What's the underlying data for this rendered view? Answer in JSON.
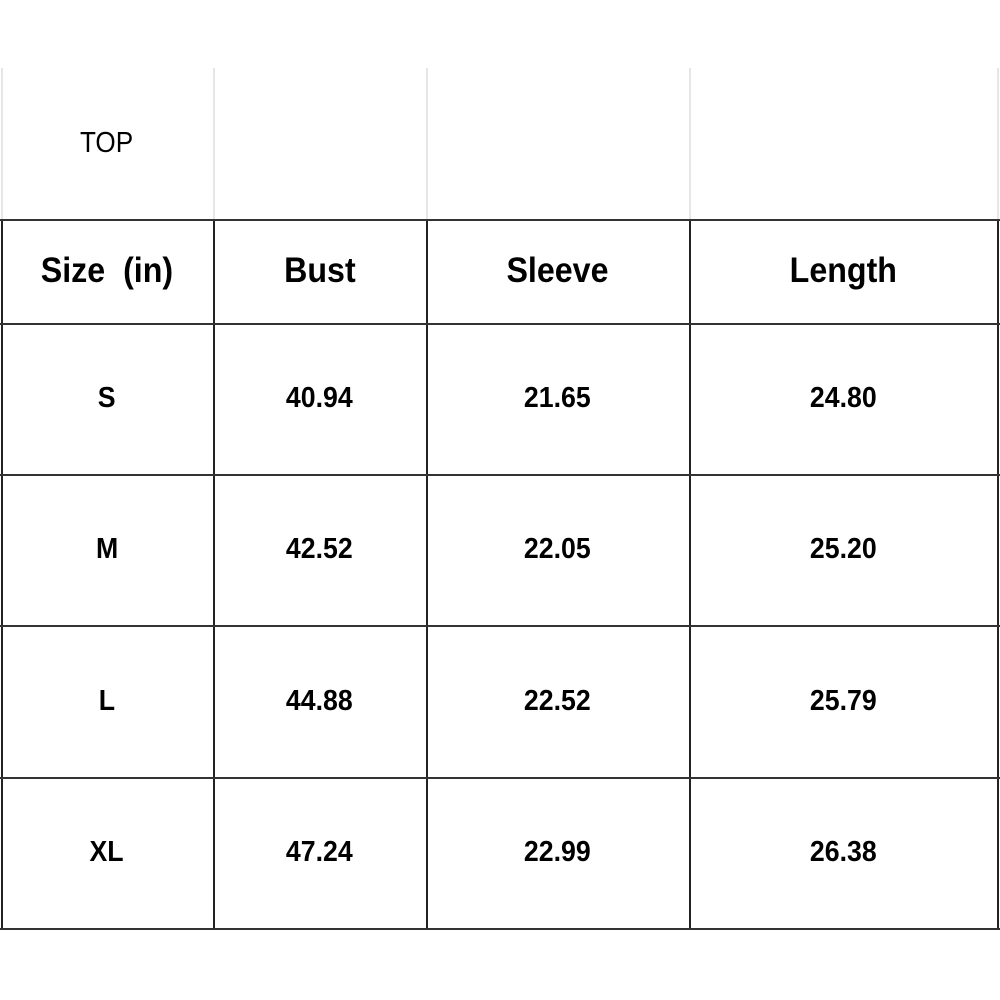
{
  "table": {
    "title": "TOP",
    "headers": [
      "Size  (in)",
      "Bust",
      "Sleeve",
      "Length"
    ],
    "rows": [
      [
        "S",
        "40.94",
        "21.65",
        "24.80"
      ],
      [
        "M",
        "42.52",
        "22.05",
        "25.20"
      ],
      [
        "L",
        "44.88",
        "22.52",
        "25.79"
      ],
      [
        "XL",
        "47.24",
        "22.99",
        "26.38"
      ]
    ]
  }
}
